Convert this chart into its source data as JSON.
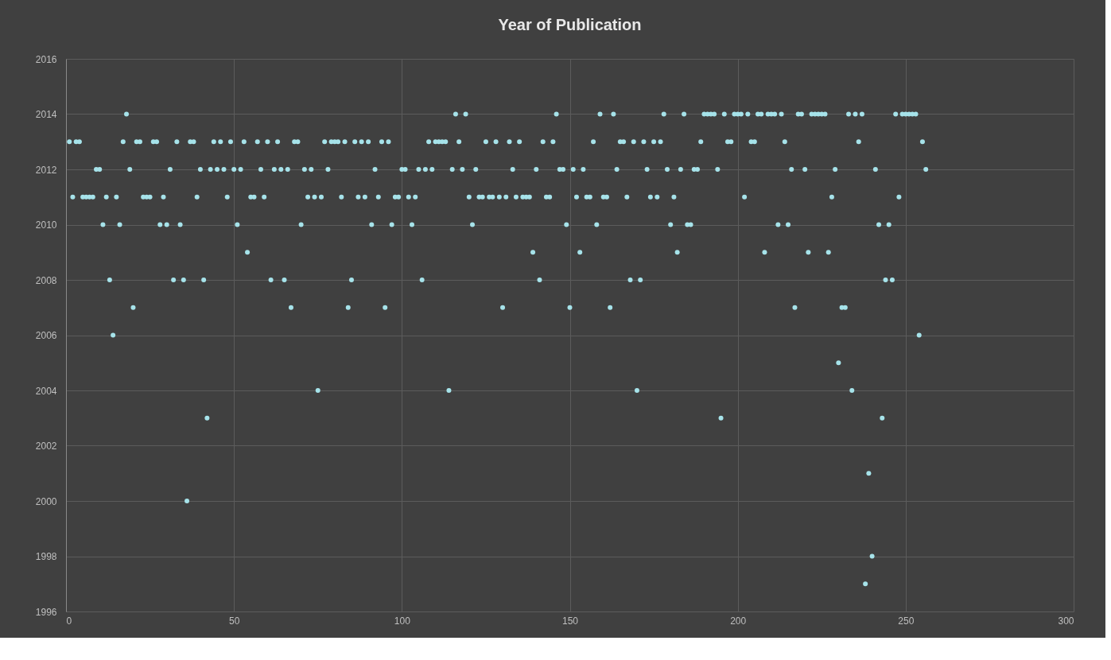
{
  "chart_data": {
    "type": "scatter",
    "title": "Year of Publication",
    "x": [
      1,
      2,
      3,
      4,
      5,
      6,
      7,
      8,
      9,
      10,
      11,
      12,
      13,
      14,
      15,
      16,
      17,
      18,
      19,
      20,
      21,
      22,
      23,
      24,
      25,
      26,
      27,
      28,
      29,
      30,
      31,
      32,
      33,
      34,
      35,
      36,
      37,
      38,
      39,
      40,
      41,
      42,
      43,
      44,
      45,
      46,
      47,
      48,
      49,
      50,
      51,
      52,
      53,
      54,
      55,
      56,
      57,
      58,
      59,
      60,
      61,
      62,
      63,
      64,
      65,
      66,
      67,
      68,
      69,
      70,
      71,
      72,
      73,
      74,
      75,
      76,
      77,
      78,
      79,
      80,
      81,
      82,
      83,
      84,
      85,
      86,
      87,
      88,
      89,
      90,
      91,
      92,
      93,
      94,
      95,
      96,
      97,
      98,
      99,
      100,
      101,
      102,
      103,
      104,
      105,
      106,
      107,
      108,
      109,
      110,
      111,
      112,
      113,
      114,
      115,
      116,
      117,
      118,
      119,
      120,
      121,
      122,
      123,
      124,
      125,
      126,
      127,
      128,
      129,
      130,
      131,
      132,
      133,
      134,
      135,
      136,
      137,
      138,
      139,
      140,
      141,
      142,
      143,
      144,
      145,
      146,
      147,
      148,
      149,
      150,
      151,
      152,
      153,
      154,
      155,
      156,
      157,
      158,
      159,
      160,
      161,
      162,
      163,
      164,
      165,
      166,
      167,
      168,
      169,
      170,
      171,
      172,
      173,
      174,
      175,
      176,
      177,
      178,
      179,
      180,
      181,
      182,
      183,
      184,
      185,
      186,
      187,
      188,
      189,
      190,
      191,
      192,
      193,
      194,
      195,
      196,
      197,
      198,
      199,
      200,
      201,
      202,
      203,
      204,
      205,
      206,
      207,
      208,
      209,
      210,
      211,
      212,
      213,
      214,
      215,
      216,
      217,
      218,
      219,
      220,
      221,
      222,
      223,
      224,
      225,
      226,
      227,
      228,
      229,
      230,
      231,
      232,
      233,
      234,
      235,
      236,
      237,
      238,
      239,
      240,
      241,
      242,
      243,
      244,
      245,
      246,
      247,
      248,
      249,
      250,
      251,
      252,
      253,
      254,
      255,
      256
    ],
    "series": [
      {
        "color": "#a6e3ea",
        "values": [
          2013,
          2011,
          2013,
          2013,
          2011,
          2011,
          2011,
          2011,
          2012,
          2012,
          2010,
          2011,
          2008,
          2006,
          2011,
          2010,
          2013,
          2014,
          2012,
          2007,
          2013,
          2013,
          2011,
          2011,
          2011,
          2013,
          2013,
          2010,
          2011,
          2010,
          2012,
          2008,
          2013,
          2010,
          2008,
          2000,
          2013,
          2013,
          2011,
          2012,
          2008,
          2003,
          2012,
          2013,
          2012,
          2013,
          2012,
          2011,
          2013,
          2012,
          2010,
          2012,
          2013,
          2009,
          2011,
          2011,
          2013,
          2012,
          2011,
          2013,
          2008,
          2012,
          2013,
          2012,
          2008,
          2012,
          2007,
          2013,
          2013,
          2010,
          2012,
          2011,
          2012,
          2011,
          2004,
          2011,
          2013,
          2012,
          2013,
          2013,
          2013,
          2011,
          2013,
          2007,
          2008,
          2013,
          2011,
          2013,
          2011,
          2013,
          2010,
          2012,
          2011,
          2013,
          2007,
          2013,
          2010,
          2011,
          2011,
          2012,
          2012,
          2011,
          2010,
          2011,
          2012,
          2008,
          2012,
          2013,
          2012,
          2013,
          2013,
          2013,
          2013,
          2004,
          2012,
          2014,
          2013,
          2012,
          2014,
          2011,
          2010,
          2012,
          2011,
          2011,
          2013,
          2011,
          2011,
          2013,
          2011,
          2007,
          2011,
          2013,
          2012,
          2011,
          2013,
          2011,
          2011,
          2011,
          2009,
          2012,
          2008,
          2013,
          2011,
          2011,
          2013,
          2014,
          2012,
          2012,
          2010,
          2007,
          2012,
          2011,
          2009,
          2012,
          2011,
          2011,
          2013,
          2010,
          2014,
          2011,
          2011,
          2007,
          2014,
          2012,
          2013,
          2013,
          2011,
          2008,
          2013,
          2004,
          2008,
          2013,
          2012,
          2011,
          2013,
          2011,
          2013,
          2014,
          2012,
          2010,
          2011,
          2009,
          2012,
          2014,
          2010,
          2010,
          2012,
          2012,
          2013,
          2014,
          2014,
          2014,
          2014,
          2012,
          2003,
          2014,
          2013,
          2013,
          2014,
          2014,
          2014,
          2011,
          2014,
          2013,
          2013,
          2014,
          2014,
          2009,
          2014,
          2014,
          2014,
          2010,
          2014,
          2013,
          2010,
          2012,
          2007,
          2014,
          2014,
          2012,
          2009,
          2014,
          2014,
          2014,
          2014,
          2014,
          2009,
          2011,
          2012,
          2005,
          2007,
          2007,
          2014,
          2004,
          2014,
          2013,
          2014,
          1997,
          2001,
          1998,
          2012,
          2010,
          2003,
          2008,
          2010,
          2008,
          2014,
          2011,
          2014,
          2014,
          2014,
          2014,
          2014,
          2006,
          2013,
          2012
        ]
      }
    ],
    "xlim": [
      0,
      300
    ],
    "xticks": [
      0,
      50,
      100,
      150,
      200,
      250,
      300
    ],
    "ylim": [
      1996,
      2016
    ],
    "yticks": [
      1996,
      1998,
      2000,
      2002,
      2004,
      2006,
      2008,
      2010,
      2012,
      2014,
      2016
    ],
    "grid": true,
    "marker": "circle"
  }
}
